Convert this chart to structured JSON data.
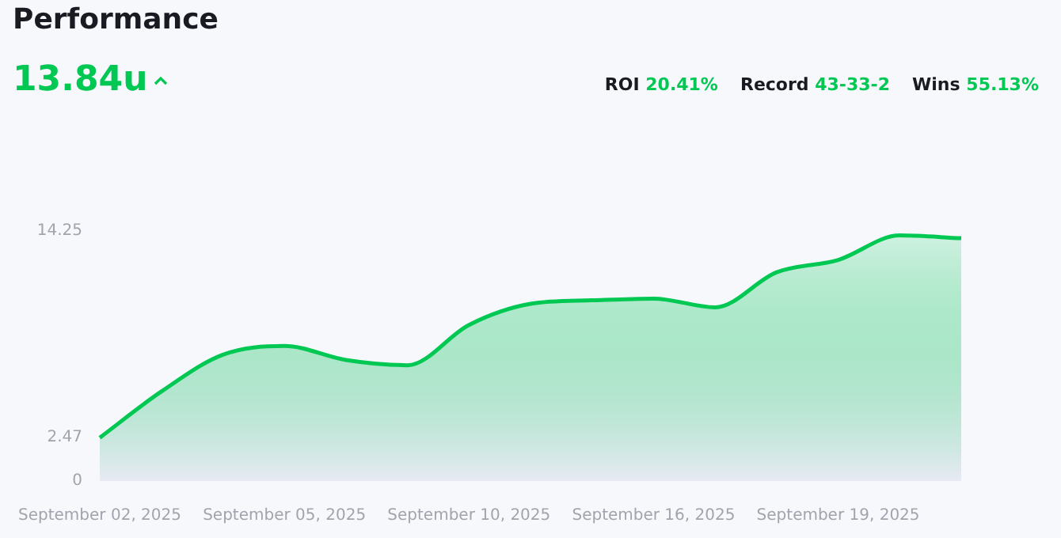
{
  "chart_data": {
    "type": "area",
    "title": "Performance",
    "subtitle": "13.84u",
    "annotations": [
      "ROI 20.41%",
      "Record 43-33-2",
      "Wins 55.13%"
    ],
    "categories": [
      "September 02, 2025",
      null,
      null,
      "September 05, 2025",
      null,
      null,
      "September 10, 2025",
      null,
      null,
      "September 16, 2025",
      null,
      null,
      "September 19, 2025",
      null,
      null
    ],
    "series": [
      {
        "color": "#00c853",
        "values": [
          2.47,
          5.1,
          7.2,
          7.7,
          6.9,
          6.6,
          8.9,
          10.1,
          10.3,
          10.4,
          9.9,
          11.9,
          12.6,
          14.0,
          13.84
        ]
      }
    ],
    "ylim": [
      0,
      14.25
    ],
    "yticks": [
      0,
      2.47,
      14.25
    ],
    "grid": false,
    "legend": false,
    "marker": "none",
    "line_style": "solid"
  }
}
